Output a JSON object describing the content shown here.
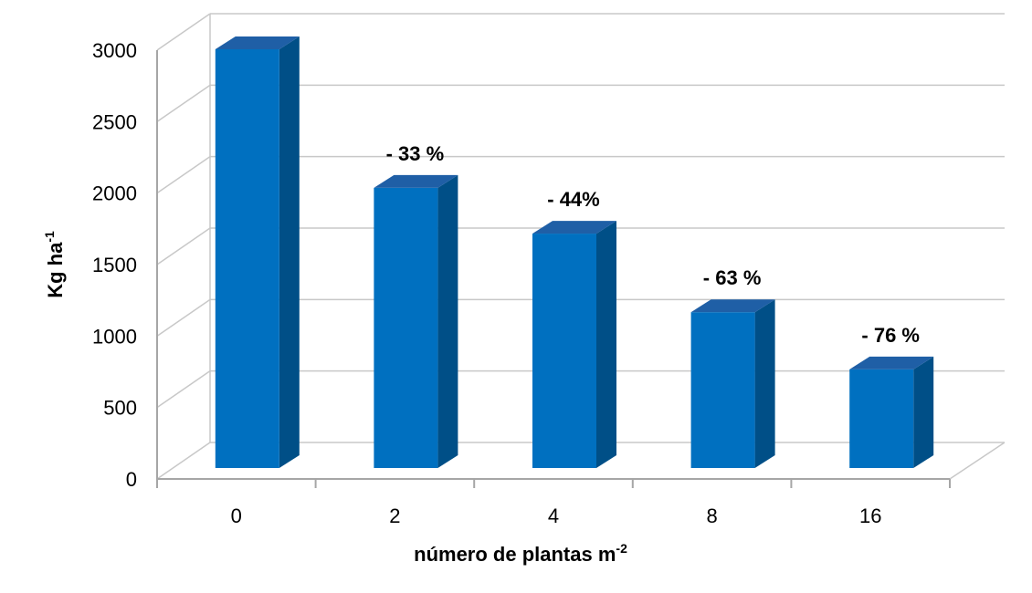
{
  "chart_data": {
    "type": "bar",
    "categories": [
      "0",
      "2",
      "4",
      "8",
      "16"
    ],
    "values": [
      2930,
      1960,
      1640,
      1090,
      690
    ],
    "data_labels": [
      "",
      "- 33 %",
      "- 44%",
      "- 63 %",
      "- 76 %"
    ],
    "xlabel_main": "número de plantas m",
    "xlabel_sup": "-2",
    "ylabel_main": "Kg ha",
    "ylabel_sup": "-1",
    "ylim": [
      0,
      3000
    ],
    "yticks": [
      0,
      500,
      1000,
      1500,
      2000,
      2500,
      3000
    ],
    "grid": true,
    "legend": "none",
    "style": "3d-column",
    "colors": {
      "front": "#0070c0",
      "side": "#004f87",
      "top": "#1f5fa6",
      "grid": "#c8c8c8"
    }
  }
}
